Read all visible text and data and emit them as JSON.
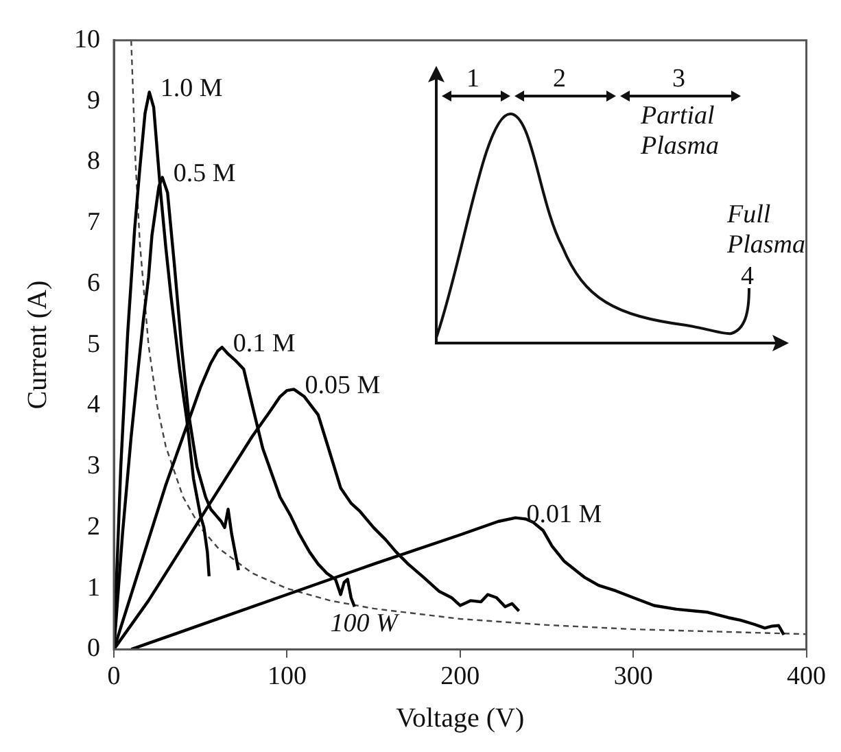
{
  "chart_data": {
    "type": "line",
    "xlabel": "Voltage (V)",
    "ylabel": "Current (A)",
    "xlim": [
      0,
      400
    ],
    "ylim": [
      0,
      10
    ],
    "xticks": [
      0,
      100,
      200,
      300,
      400
    ],
    "yticks": [
      0,
      1,
      2,
      3,
      4,
      5,
      6,
      7,
      8,
      9,
      10
    ],
    "marker": "none",
    "annotations": [
      "1",
      "2",
      "3",
      "Partial Plasma",
      "Full Plasma",
      "4"
    ],
    "series": [
      {
        "name": "1.0 M",
        "color": "#000000",
        "line_style": "solid",
        "x": [
          0,
          4,
          8,
          12,
          15,
          18,
          20.5,
          23,
          27,
          30,
          33,
          38,
          42,
          46,
          48,
          50,
          52,
          54,
          55
        ],
        "values": [
          0,
          3,
          5.2,
          6.9,
          7.9,
          8.8,
          9.15,
          8.9,
          7.5,
          6.6,
          5.8,
          4.6,
          3.8,
          2.8,
          2.5,
          2.2,
          2.0,
          1.6,
          1.2
        ]
      },
      {
        "name": "0.5 M",
        "color": "#000000",
        "line_style": "solid",
        "x": [
          0,
          5,
          10,
          14,
          17,
          20,
          22,
          26,
          28,
          31,
          33,
          35,
          39,
          43,
          48,
          53,
          56,
          59,
          62,
          64,
          66,
          67,
          68,
          70,
          72
        ],
        "values": [
          0,
          1.9,
          3.5,
          4.6,
          5.4,
          6.1,
          6.8,
          7.6,
          7.75,
          7.5,
          6.9,
          6.3,
          5.0,
          3.9,
          3.0,
          2.5,
          2.3,
          2.2,
          2.1,
          2.0,
          2.3,
          2.1,
          1.9,
          1.6,
          1.3
        ]
      },
      {
        "name": "0.1 M",
        "color": "#000000",
        "line_style": "solid",
        "x": [
          0,
          10,
          20,
          30,
          40,
          50,
          56,
          60,
          62.5,
          66,
          70,
          75,
          80,
          86,
          91,
          96,
          102,
          107,
          113,
          118,
          123,
          128,
          131,
          133,
          135,
          137,
          139
        ],
        "values": [
          0,
          0.9,
          1.8,
          2.7,
          3.5,
          4.3,
          4.7,
          4.9,
          4.96,
          4.85,
          4.75,
          4.6,
          4.0,
          3.3,
          2.9,
          2.5,
          2.2,
          1.9,
          1.6,
          1.4,
          1.25,
          1.15,
          0.9,
          1.1,
          1.15,
          0.85,
          0.7
        ]
      },
      {
        "name": "0.05 M",
        "color": "#000000",
        "line_style": "solid",
        "x": [
          0,
          20,
          40,
          60,
          80,
          90,
          96,
          100,
          104,
          110,
          118,
          124,
          131,
          137,
          142,
          150,
          157,
          163,
          170,
          179,
          188,
          195,
          200,
          206,
          212,
          216,
          221,
          226,
          230,
          234
        ],
        "values": [
          0,
          0.8,
          1.7,
          2.6,
          3.5,
          3.9,
          4.15,
          4.25,
          4.27,
          4.15,
          3.85,
          3.3,
          2.65,
          2.4,
          2.27,
          2.0,
          1.8,
          1.6,
          1.4,
          1.18,
          0.95,
          0.85,
          0.72,
          0.8,
          0.78,
          0.9,
          0.85,
          0.7,
          0.75,
          0.63
        ]
      },
      {
        "name": "0.01 M",
        "color": "#000000",
        "line_style": "solid",
        "x": [
          10,
          50,
          100,
          150,
          200,
          222,
          232,
          238,
          242,
          248,
          253,
          260,
          272,
          280,
          290,
          300,
          312,
          325,
          343,
          355,
          362,
          370,
          376,
          380,
          384,
          387
        ],
        "values": [
          0,
          0.4,
          0.9,
          1.4,
          1.88,
          2.1,
          2.16,
          2.14,
          2.09,
          1.95,
          1.7,
          1.45,
          1.18,
          1.05,
          0.96,
          0.85,
          0.72,
          0.66,
          0.61,
          0.52,
          0.48,
          0.41,
          0.35,
          0.38,
          0.39,
          0.24
        ]
      },
      {
        "name": "100 W",
        "color": "#444444",
        "line_style": "dashed",
        "x": [
          10,
          12.5,
          15,
          20,
          25,
          30,
          40,
          50,
          60,
          80,
          100,
          125,
          150,
          200,
          250,
          300,
          350,
          400
        ],
        "values": [
          10,
          8,
          6.67,
          5,
          4,
          3.33,
          2.5,
          2,
          1.67,
          1.25,
          1,
          0.8,
          0.67,
          0.5,
          0.4,
          0.33,
          0.29,
          0.25
        ]
      }
    ]
  }
}
